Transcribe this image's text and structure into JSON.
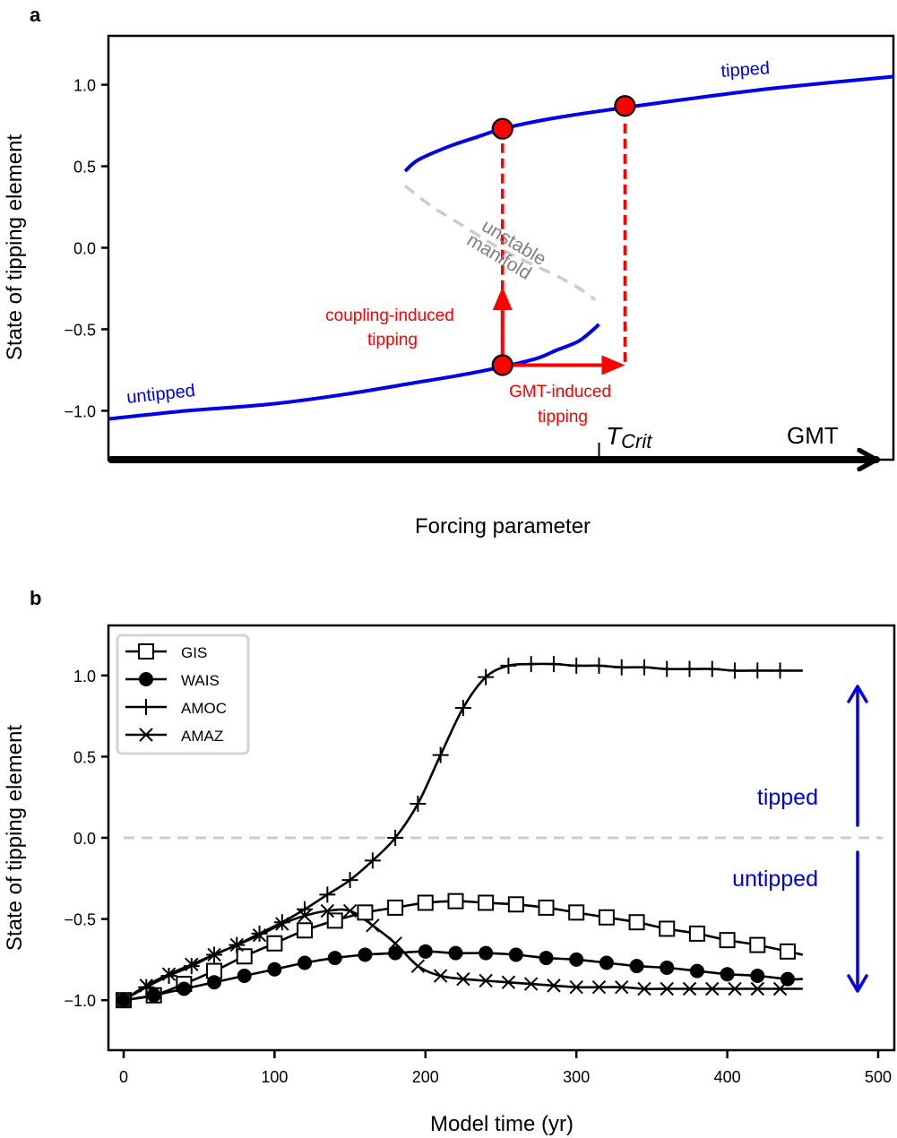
{
  "chart_data": [
    {
      "panel_label": "a",
      "type": "line",
      "title": "",
      "xlabel": "Forcing parameter",
      "ylabel": "State of tipping element",
      "xlim": [
        0,
        1
      ],
      "ylim": [
        -1.3,
        1.3
      ],
      "yticks": [
        1.0,
        0.5,
        0.0,
        -0.5,
        -1.0
      ],
      "ytick_labels": [
        "1.0",
        "0.5",
        "0.0",
        "−0.5",
        "−1.0"
      ],
      "grid": false,
      "x_axis_arrow_label": "GMT",
      "critical_tick": {
        "x": 0.625,
        "label_main": "T",
        "label_sub": "Crit"
      },
      "series": [
        {
          "name": "untipped",
          "style": "solid",
          "color": "#0000ee",
          "x": [
            0.0,
            0.1,
            0.205,
            0.3,
            0.388,
            0.45,
            0.502,
            0.545,
            0.57,
            0.6,
            0.625
          ],
          "y": [
            -1.05,
            -1.0,
            -0.96,
            -0.9,
            -0.83,
            -0.78,
            -0.73,
            -0.68,
            -0.63,
            -0.57,
            -0.47
          ]
        },
        {
          "name": "tipped",
          "style": "solid",
          "color": "#0000ee",
          "x": [
            0.378,
            0.395,
            0.433,
            0.47,
            0.502,
            0.55,
            0.6,
            0.658,
            0.75,
            0.85,
            1.0
          ],
          "y": [
            0.47,
            0.54,
            0.62,
            0.68,
            0.73,
            0.78,
            0.82,
            0.86,
            0.92,
            0.98,
            1.05
          ]
        },
        {
          "name": "unstable manifold",
          "style": "dashed",
          "color": "#cccccc",
          "x": [
            0.378,
            0.41,
            0.45,
            0.49,
            0.53,
            0.57,
            0.6,
            0.62
          ],
          "y": [
            0.38,
            0.26,
            0.14,
            0.02,
            -0.08,
            -0.17,
            -0.25,
            -0.32
          ]
        }
      ],
      "points": [
        {
          "x": 0.502,
          "y": -0.72
        },
        {
          "x": 0.502,
          "y": 0.73
        },
        {
          "x": 0.658,
          "y": 0.87
        }
      ],
      "arrows": [
        {
          "name": "coupling-arrow",
          "from": [
            0.502,
            -0.72
          ],
          "to": [
            0.502,
            -0.24
          ]
        },
        {
          "name": "gmt-arrow",
          "from": [
            0.502,
            -0.72
          ],
          "to": [
            0.658,
            -0.72
          ]
        }
      ],
      "dashed_lines": [
        {
          "x": 0.502,
          "y_from": -0.26,
          "y_to": 0.64
        },
        {
          "x": 0.658,
          "y_from": -0.7,
          "y_to": 0.78
        }
      ],
      "annotations": {
        "tipped": "tipped",
        "untipped": "untipped",
        "unstable_1": "unstable",
        "unstable_2": "manifold",
        "coupling_1": "coupling-induced",
        "coupling_2": "tipping",
        "gmt_1": "GMT-induced",
        "gmt_2": "tipping"
      },
      "colors": {
        "branch": "#0000ee",
        "tipping": "#ff0000",
        "unstable": "#cccccc"
      }
    },
    {
      "panel_label": "b",
      "type": "line",
      "title": "",
      "xlabel": "Model time (yr)",
      "ylabel": "State of tipping element",
      "xlim": [
        -10,
        505
      ],
      "ylim": [
        -1.3,
        1.3
      ],
      "xticks": [
        0,
        100,
        200,
        300,
        400,
        500
      ],
      "xtick_labels": [
        "0",
        "100",
        "200",
        "300",
        "400",
        "500"
      ],
      "yticks": [
        1.0,
        0.5,
        0.0,
        -0.5,
        -1.0
      ],
      "ytick_labels": [
        "1.0",
        "0.5",
        "0.0",
        "−0.5",
        "−1.0"
      ],
      "grid": false,
      "legend_position": "top-left",
      "threshold_line": {
        "y": 0.0,
        "style": "dashed",
        "color": "#cccccc"
      },
      "annotations": {
        "tipped": "tipped",
        "untipped": "untipped",
        "color": "#0000ee"
      },
      "series": [
        {
          "name": "GIS",
          "marker": "square-open",
          "x": [
            0,
            20,
            40,
            60,
            80,
            100,
            120,
            140,
            160,
            180,
            200,
            220,
            240,
            260,
            280,
            300,
            320,
            340,
            360,
            380,
            400,
            420,
            440,
            450
          ],
          "y": [
            -1.0,
            -0.97,
            -0.9,
            -0.82,
            -0.73,
            -0.65,
            -0.57,
            -0.51,
            -0.46,
            -0.43,
            -0.4,
            -0.39,
            -0.4,
            -0.41,
            -0.43,
            -0.46,
            -0.49,
            -0.52,
            -0.56,
            -0.59,
            -0.63,
            -0.66,
            -0.7,
            -0.72
          ]
        },
        {
          "name": "WAIS",
          "marker": "circle-filled",
          "x": [
            0,
            20,
            40,
            60,
            80,
            100,
            120,
            140,
            160,
            180,
            200,
            220,
            240,
            260,
            280,
            300,
            320,
            340,
            360,
            380,
            400,
            420,
            440,
            450
          ],
          "y": [
            -1.0,
            -0.97,
            -0.93,
            -0.89,
            -0.85,
            -0.81,
            -0.77,
            -0.74,
            -0.72,
            -0.71,
            -0.7,
            -0.71,
            -0.71,
            -0.72,
            -0.74,
            -0.75,
            -0.77,
            -0.79,
            -0.8,
            -0.82,
            -0.84,
            -0.85,
            -0.87,
            -0.87
          ]
        },
        {
          "name": "AMOC",
          "marker": "plus",
          "x": [
            0,
            15,
            30,
            45,
            60,
            75,
            90,
            105,
            120,
            135,
            150,
            165,
            180,
            195,
            210,
            225,
            240,
            255,
            270,
            285,
            300,
            315,
            330,
            345,
            360,
            375,
            390,
            405,
            420,
            435,
            450
          ],
          "y": [
            -1.0,
            -0.92,
            -0.85,
            -0.79,
            -0.72,
            -0.66,
            -0.59,
            -0.52,
            -0.44,
            -0.35,
            -0.26,
            -0.14,
            0.0,
            0.21,
            0.51,
            0.8,
            0.99,
            1.06,
            1.07,
            1.07,
            1.06,
            1.06,
            1.05,
            1.05,
            1.04,
            1.04,
            1.04,
            1.03,
            1.03,
            1.03,
            1.03
          ]
        },
        {
          "name": "AMAZ",
          "marker": "x",
          "x": [
            0,
            15,
            30,
            45,
            60,
            75,
            90,
            105,
            120,
            135,
            150,
            165,
            180,
            195,
            210,
            225,
            240,
            255,
            270,
            285,
            300,
            315,
            330,
            345,
            360,
            375,
            390,
            405,
            420,
            435,
            450
          ],
          "y": [
            -1.0,
            -0.91,
            -0.84,
            -0.78,
            -0.72,
            -0.66,
            -0.6,
            -0.53,
            -0.48,
            -0.45,
            -0.45,
            -0.54,
            -0.65,
            -0.79,
            -0.85,
            -0.87,
            -0.88,
            -0.89,
            -0.9,
            -0.91,
            -0.92,
            -0.92,
            -0.92,
            -0.93,
            -0.93,
            -0.93,
            -0.93,
            -0.93,
            -0.93,
            -0.93,
            -0.93
          ]
        }
      ]
    }
  ]
}
